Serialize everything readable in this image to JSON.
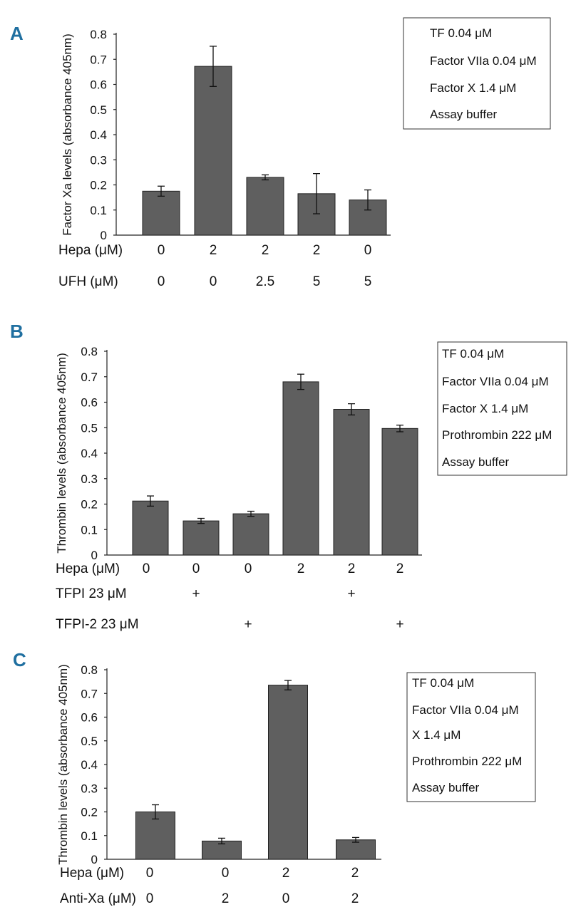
{
  "chart_data": [
    {
      "panel": "A",
      "type": "bar",
      "ylabel": "Factor Xa levels (absorbance 405nm)",
      "ylim": [
        0,
        0.8
      ],
      "yticks": [
        "0",
        "0.1",
        "0.2",
        "0.3",
        "0.4",
        "0.5",
        "0.6",
        "0.7",
        "0.8"
      ],
      "values": [
        0.175,
        0.672,
        0.23,
        0.165,
        0.14
      ],
      "errors": [
        0.02,
        0.08,
        0.01,
        0.08,
        0.04
      ],
      "conditions": [
        {
          "label": "Hepa (μM)",
          "values": [
            "0",
            "2",
            "2",
            "2",
            "0"
          ]
        },
        {
          "label": "UFH (μM)",
          "values": [
            "0",
            "0",
            "2.5",
            "5",
            "5"
          ]
        }
      ],
      "legend": [
        "TF 0.04 μM",
        "Factor VIIa 0.04 μM",
        "Factor X 1.4 μM",
        "Assay buffer"
      ]
    },
    {
      "panel": "B",
      "type": "bar",
      "ylabel": "Thrombin levels (absorbance 405nm)",
      "ylim": [
        0,
        0.8
      ],
      "yticks": [
        "0",
        "0.1",
        "0.2",
        "0.3",
        "0.4",
        "0.5",
        "0.6",
        "0.7",
        "0.8"
      ],
      "values": [
        0.212,
        0.134,
        0.162,
        0.68,
        0.572,
        0.497
      ],
      "errors": [
        0.02,
        0.01,
        0.01,
        0.03,
        0.022,
        0.013
      ],
      "conditions": [
        {
          "label": "Hepa (μM)",
          "values": [
            "0",
            "0",
            "0",
            "2",
            "2",
            "2"
          ]
        },
        {
          "label": "TFPI 23 μM",
          "values": [
            "",
            "+",
            "",
            "",
            "+",
            ""
          ]
        },
        {
          "label": "TFPI-2 23 μM",
          "values": [
            "",
            "",
            "+",
            "",
            "",
            "+"
          ]
        }
      ],
      "legend": [
        "TF 0.04 μM",
        "Factor VIIa 0.04 μM",
        "Factor X 1.4 μM",
        "Prothrombin 222 μM",
        "Assay buffer"
      ]
    },
    {
      "panel": "C",
      "type": "bar",
      "ylabel": "Thrombin levels (absorbance 405nm)",
      "ylim": [
        0,
        0.8
      ],
      "yticks": [
        "0",
        "0.1",
        "0.2",
        "0.3",
        "0.4",
        "0.5",
        "0.6",
        "0.7",
        "0.8"
      ],
      "values": [
        0.2,
        0.077,
        0.735,
        0.082
      ],
      "errors": [
        0.03,
        0.012,
        0.02,
        0.01
      ],
      "conditions": [
        {
          "label": "Hepa (μM)",
          "values": [
            "0",
            "0",
            "2",
            "2"
          ]
        },
        {
          "label": "Anti-Xa (μM)",
          "values": [
            "0",
            "2",
            "0",
            "2"
          ]
        }
      ],
      "legend": [
        "TF 0.04 μM",
        "Factor VIIa 0.04 μM",
        "X 1.4 μM",
        "Prothrombin 222 μM",
        "Assay buffer"
      ]
    }
  ]
}
